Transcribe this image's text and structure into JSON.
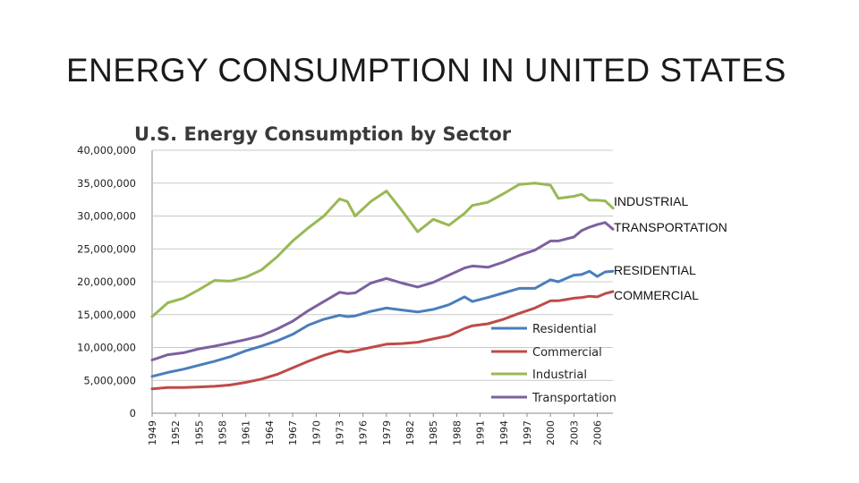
{
  "slide": {
    "title": "ENERGY CONSUMPTION IN UNITED STATES"
  },
  "side_labels": {
    "industrial": "INDUSTRIAL",
    "transportation": "TRANSPORTATION",
    "residential": "RESIDENTIAL",
    "commercial": "COMMERCIAL"
  },
  "chart_data": {
    "type": "line",
    "title": "U.S. Energy Consumption by Sector",
    "xlabel": "",
    "ylabel": "",
    "ylim": [
      0,
      40000000
    ],
    "yticks": [
      "0",
      "5,000,000",
      "10,000,000",
      "15,000,000",
      "20,000,000",
      "25,000,000",
      "30,000,000",
      "35,000,000",
      "40,000,000"
    ],
    "ytick_values": [
      0,
      5000000,
      10000000,
      15000000,
      20000000,
      25000000,
      30000000,
      35000000,
      40000000
    ],
    "xlim": [
      1949,
      2008
    ],
    "xticks": [
      "1949",
      "1952",
      "1955",
      "1958",
      "1961",
      "1964",
      "1967",
      "1970",
      "1973",
      "1976",
      "1979",
      "1982",
      "1985",
      "1988",
      "1991",
      "1994",
      "1997",
      "2000",
      "2003",
      "2006"
    ],
    "grid": true,
    "legend_position": "bottom-right",
    "x": [
      1949,
      1951,
      1953,
      1955,
      1957,
      1959,
      1961,
      1963,
      1965,
      1967,
      1969,
      1971,
      1973,
      1974,
      1975,
      1977,
      1979,
      1981,
      1983,
      1985,
      1987,
      1989,
      1990,
      1992,
      1994,
      1996,
      1998,
      2000,
      2001,
      2003,
      2004,
      2005,
      2006,
      2007,
      2008
    ],
    "series": [
      {
        "name": "Residential",
        "color": "#4a7ebb",
        "values": [
          5600000,
          6200000,
          6700000,
          7300000,
          7900000,
          8600000,
          9500000,
          10200000,
          11000000,
          12000000,
          13400000,
          14300000,
          14900000,
          14700000,
          14800000,
          15500000,
          16000000,
          15700000,
          15400000,
          15800000,
          16500000,
          17700000,
          17000000,
          17600000,
          18300000,
          19000000,
          19000000,
          20300000,
          20000000,
          21000000,
          21100000,
          21600000,
          20800000,
          21500000,
          21600000
        ]
      },
      {
        "name": "Commercial",
        "color": "#be4b48",
        "values": [
          3700000,
          3900000,
          3900000,
          4000000,
          4100000,
          4300000,
          4700000,
          5200000,
          5900000,
          6900000,
          7900000,
          8800000,
          9500000,
          9300000,
          9500000,
          10000000,
          10500000,
          10600000,
          10800000,
          11300000,
          11800000,
          12900000,
          13300000,
          13600000,
          14300000,
          15200000,
          16000000,
          17100000,
          17100000,
          17500000,
          17600000,
          17800000,
          17700000,
          18200000,
          18500000
        ]
      },
      {
        "name": "Industrial",
        "color": "#98b954",
        "values": [
          14700000,
          16800000,
          17500000,
          18800000,
          20200000,
          20100000,
          20700000,
          21800000,
          23800000,
          26200000,
          28200000,
          30000000,
          32600000,
          32200000,
          30000000,
          32200000,
          33800000,
          30800000,
          27600000,
          29500000,
          28600000,
          30400000,
          31600000,
          32100000,
          33400000,
          34800000,
          35000000,
          34700000,
          32700000,
          33000000,
          33300000,
          32400000,
          32400000,
          32300000,
          31200000
        ]
      },
      {
        "name": "Transportation",
        "color": "#7d60a0",
        "values": [
          8100000,
          8900000,
          9200000,
          9800000,
          10200000,
          10700000,
          11200000,
          11800000,
          12800000,
          14000000,
          15600000,
          17000000,
          18400000,
          18200000,
          18300000,
          19800000,
          20500000,
          19800000,
          19200000,
          19900000,
          21000000,
          22100000,
          22400000,
          22200000,
          23000000,
          24000000,
          24800000,
          26200000,
          26200000,
          26800000,
          27800000,
          28300000,
          28700000,
          29000000,
          28000000
        ]
      }
    ]
  }
}
